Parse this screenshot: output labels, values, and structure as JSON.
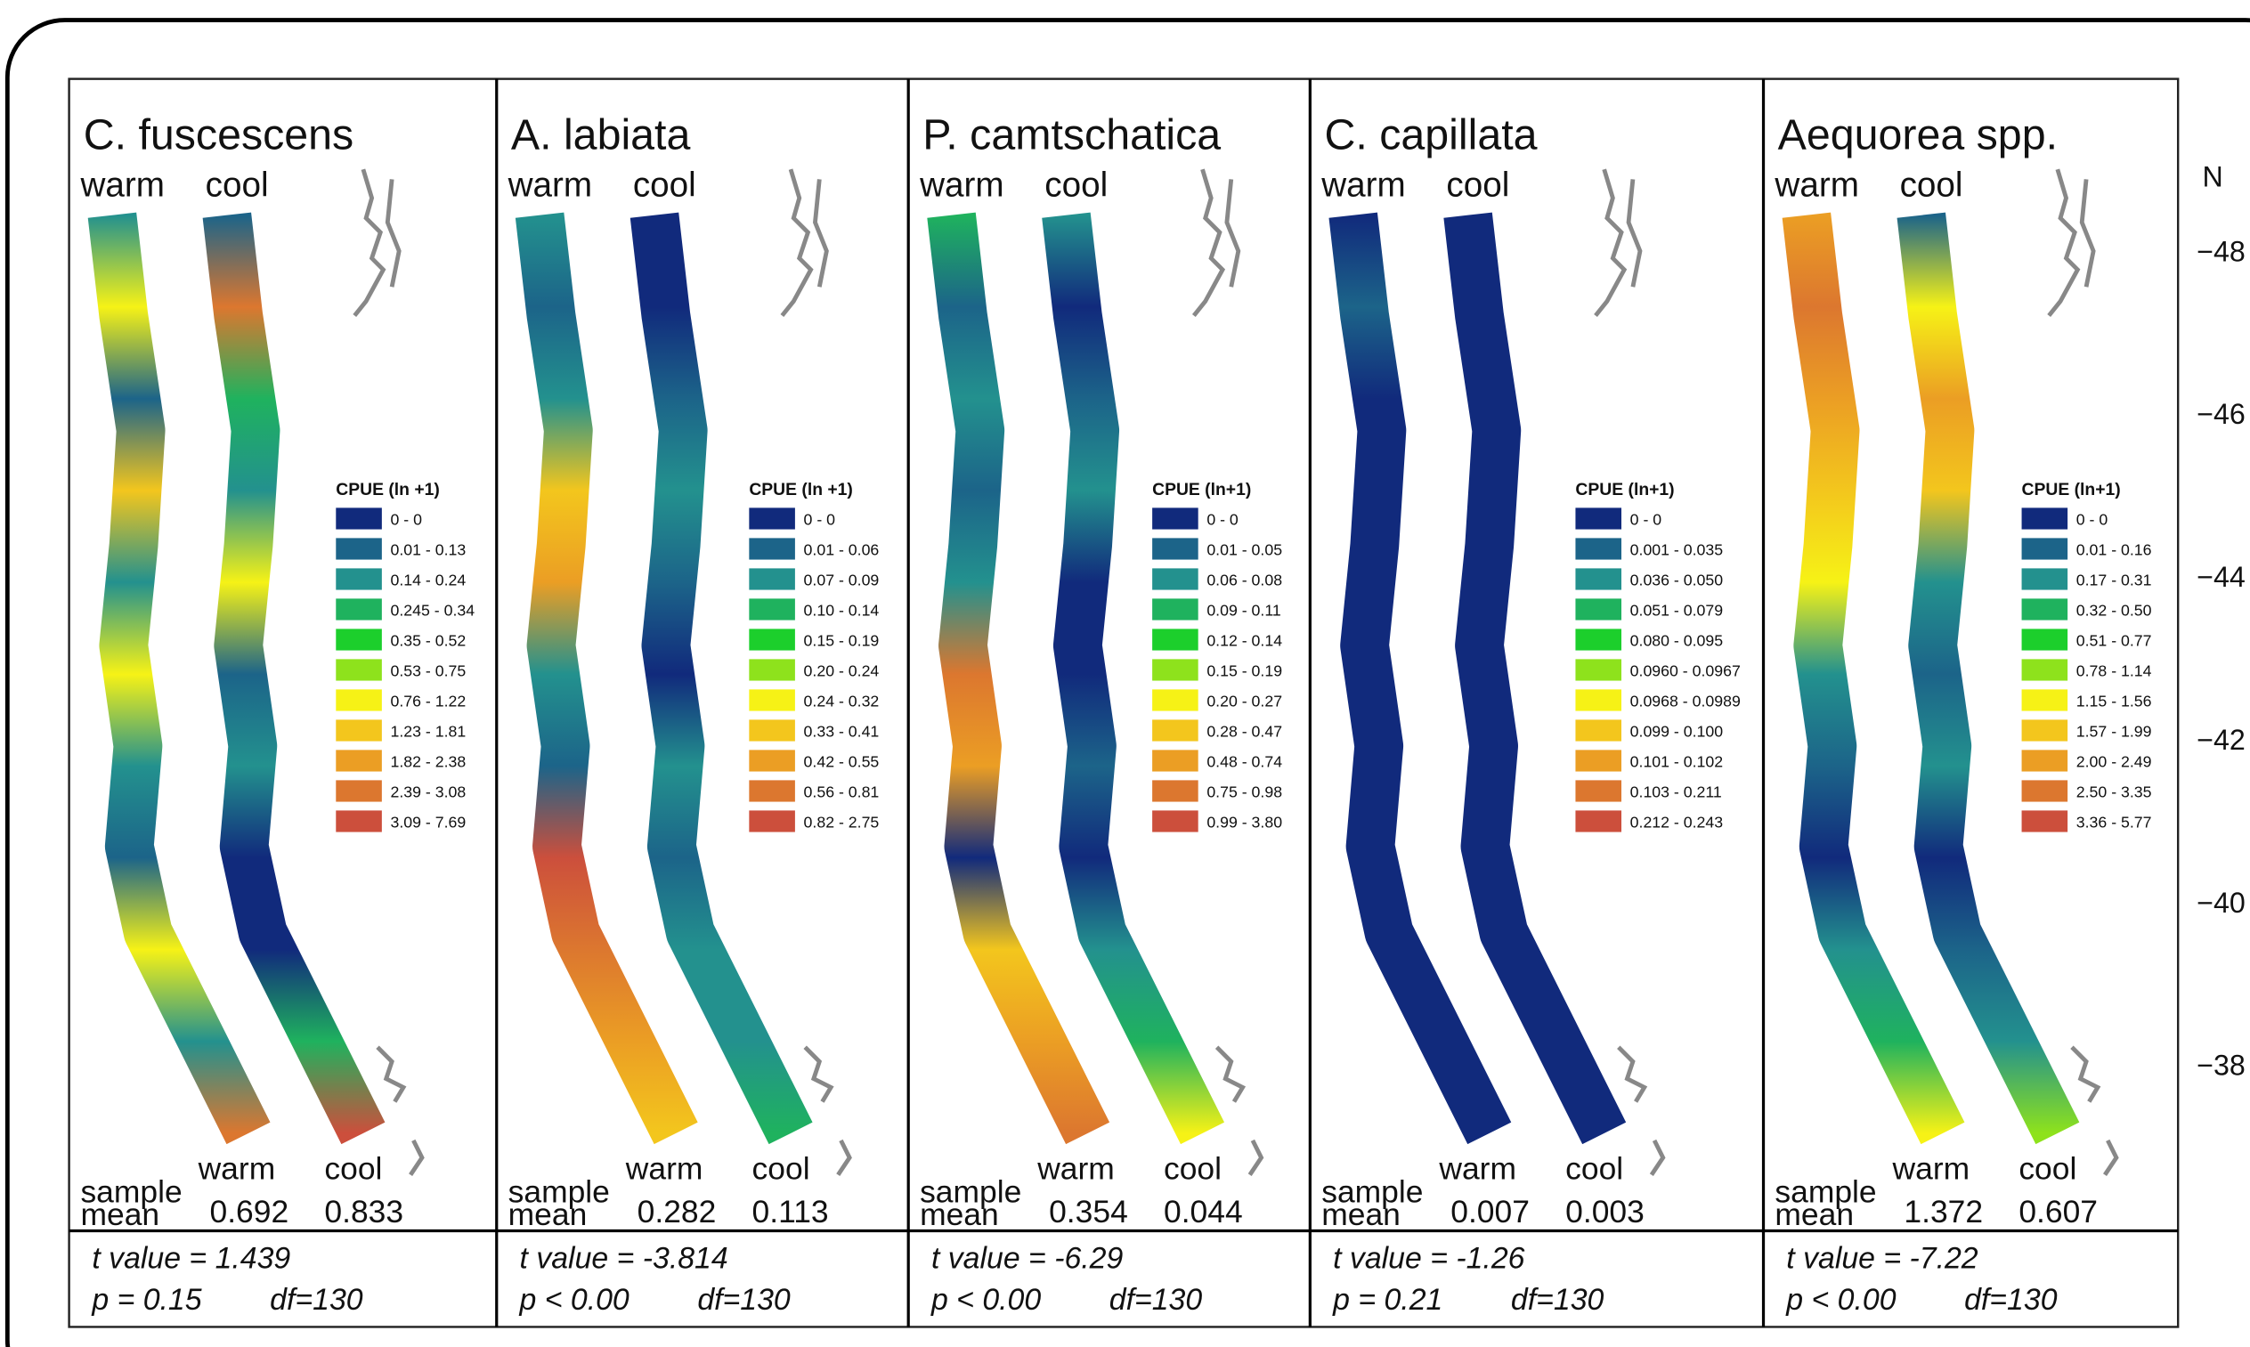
{
  "palette": [
    "#112a7c",
    "#1c6489",
    "#23918e",
    "#1fb25e",
    "#1ccf2c",
    "#8ee21c",
    "#f6f216",
    "#f3c61d",
    "#eb9e24",
    "#dc772f",
    "#cc4f3c"
  ],
  "panels": [
    {
      "title": "C. fuscescens",
      "warm_label": "warm",
      "cool_label": "cool",
      "legend_title": "CPUE (ln +1)",
      "legend": [
        "0 - 0",
        "0.01 - 0.13",
        "0.14 - 0.24",
        "0.245 - 0.34",
        "0.35 - 0.52",
        "0.53 - 0.75",
        "0.76 - 1.22",
        "1.23 - 1.81",
        "1.82 - 2.38",
        "2.39 - 3.08",
        "3.09 - 7.69"
      ],
      "sample_label": "sample",
      "mean_label": "mean",
      "warm_mean": "0.692",
      "cool_mean": "0.833",
      "t": "t value = 1.439",
      "p": "p = 0.15",
      "df": "df=130"
    },
    {
      "title": "A. labiata",
      "warm_label": "warm",
      "cool_label": "cool",
      "legend_title": "CPUE (ln +1)",
      "legend": [
        "0 - 0",
        "0.01 - 0.06",
        "0.07 - 0.09",
        "0.10 - 0.14",
        "0.15 - 0.19",
        "0.20 - 0.24",
        "0.24 - 0.32",
        "0.33 - 0.41",
        "0.42 - 0.55",
        "0.56 - 0.81",
        "0.82 - 2.75"
      ],
      "sample_label": "sample",
      "mean_label": "mean",
      "warm_mean": "0.282",
      "cool_mean": "0.113",
      "t": "t value = -3.814",
      "p": "p < 0.00",
      "df": "df=130"
    },
    {
      "title": "P. camtschatica",
      "warm_label": "warm",
      "cool_label": "cool",
      "legend_title": "CPUE (ln+1)",
      "legend": [
        "0 - 0",
        "0.01 - 0.05",
        "0.06 - 0.08",
        "0.09 - 0.11",
        "0.12 - 0.14",
        "0.15 - 0.19",
        "0.20 - 0.27",
        "0.28 - 0.47",
        "0.48 - 0.74",
        "0.75 - 0.98",
        "0.99 - 3.80"
      ],
      "sample_label": "sample",
      "mean_label": "mean",
      "warm_mean": "0.354",
      "cool_mean": "0.044",
      "t": "t value = -6.29",
      "p": "p < 0.00",
      "df": "df=130"
    },
    {
      "title": "C. capillata",
      "warm_label": "warm",
      "cool_label": "cool",
      "legend_title": "CPUE (ln+1)",
      "legend": [
        "0 - 0",
        "0.001 - 0.035",
        "0.036 - 0.050",
        "0.051 - 0.079",
        "0.080 - 0.095",
        "0.0960 - 0.0967",
        "0.0968 - 0.0989",
        "0.099 - 0.100",
        "0.101 - 0.102",
        "0.103 - 0.211",
        "0.212 - 0.243"
      ],
      "sample_label": "sample",
      "mean_label": "mean",
      "warm_mean": "0.007",
      "cool_mean": "0.003",
      "t": "t value = -1.26",
      "p": "p = 0.21",
      "df": "df=130"
    },
    {
      "title": "Aequorea spp.",
      "warm_label": "warm",
      "cool_label": "cool",
      "legend_title": "CPUE (ln+1)",
      "legend": [
        "0 - 0",
        "0.01 - 0.16",
        "0.17 - 0.31",
        "0.32 - 0.50",
        "0.51 - 0.77",
        "0.78 - 1.14",
        "1.15 - 1.56",
        "1.57 - 1.99",
        "2.00 - 2.49",
        "2.50 - 3.35",
        "3.36 - 5.77"
      ],
      "sample_label": "sample",
      "mean_label": "mean",
      "warm_mean": "1.372",
      "cool_mean": "0.607",
      "t": "t value = -7.22",
      "p": "p < 0.00",
      "df": "df=130"
    }
  ],
  "latitude_axis": {
    "label": "N",
    "ticks": [
      "−48",
      "−46",
      "−44",
      "−42",
      "−40",
      "−38"
    ]
  }
}
